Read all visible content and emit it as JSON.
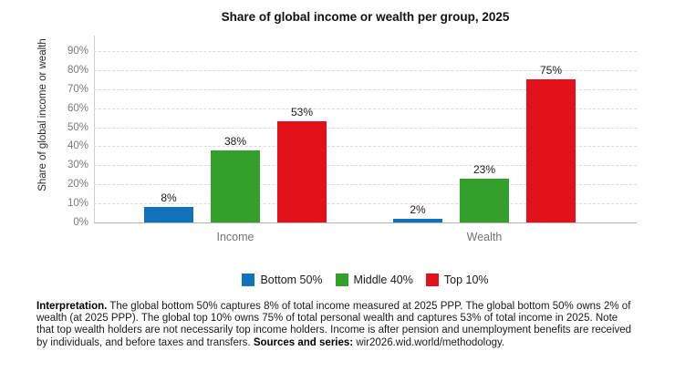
{
  "title": "Share of global income or wealth per group, 2025",
  "chart_data": {
    "type": "bar",
    "categories": [
      "Income",
      "Wealth"
    ],
    "series": [
      {
        "name": "Bottom 50%",
        "color": "#1072B8",
        "values": [
          8,
          2
        ]
      },
      {
        "name": "Middle 40%",
        "color": "#33A02C",
        "values": [
          38,
          23
        ]
      },
      {
        "name": "Top 10%",
        "color": "#E2121B",
        "values": [
          53,
          75
        ]
      }
    ],
    "value_suffix": "%",
    "value_labels": [
      "8%",
      "38%",
      "53%",
      "2%",
      "23%",
      "75%"
    ],
    "ylabel": "Share of global income or wealth",
    "yticks": [
      0,
      10,
      20,
      30,
      40,
      50,
      60,
      70,
      80,
      90
    ],
    "ytick_suffix": "%",
    "ylim": [
      0,
      98
    ],
    "grid": "horizontal-dashed",
    "legend_position": "bottom-center"
  },
  "caption": {
    "segments": [
      {
        "bold": true,
        "text": "Interpretation."
      },
      {
        "bold": false,
        "text": " The global bottom 50% captures 8% of total income measured at 2025 PPP. The global bottom 50% owns 2% of wealth (at 2025 PPP). The global top 10% owns 75% of total personal wealth and captures 53% of total income in 2025. Note that top wealth holders are not necessarily top income holders. Income is after pension and unemployment benefits are received by individuals, and before taxes and transfers. "
      },
      {
        "bold": true,
        "text": "Sources and series:"
      },
      {
        "bold": false,
        "text": " wir2026.wid.world/methodology."
      }
    ]
  }
}
